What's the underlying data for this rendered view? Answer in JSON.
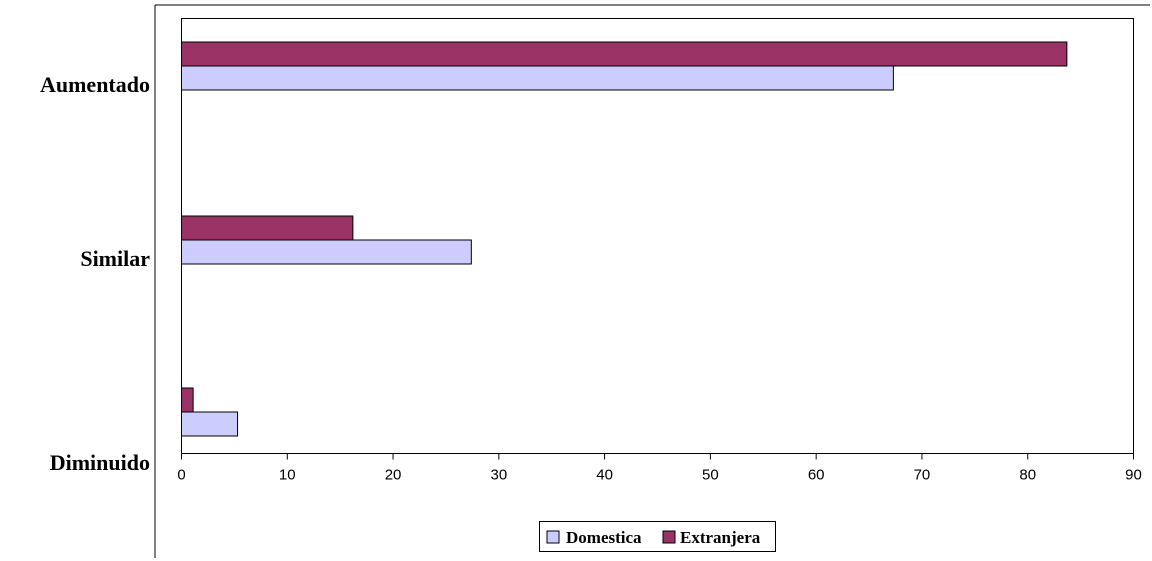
{
  "chart_data": {
    "type": "bar",
    "orientation": "horizontal",
    "categories": [
      "Aumentado",
      "Similar",
      "Diminuido"
    ],
    "series": [
      {
        "name": "Domestica",
        "color": "#ccccff",
        "values": [
          67.3,
          27.4,
          5.3
        ]
      },
      {
        "name": "Extranjera",
        "color": "#993366",
        "values": [
          83.7,
          16.2,
          1.1
        ]
      }
    ],
    "xlim": [
      0,
      90
    ],
    "xticks": [
      0,
      10,
      20,
      30,
      40,
      50,
      60,
      70,
      80,
      90
    ],
    "grid": false,
    "legend": "bottom",
    "title": "",
    "xlabel": "",
    "ylabel": ""
  }
}
